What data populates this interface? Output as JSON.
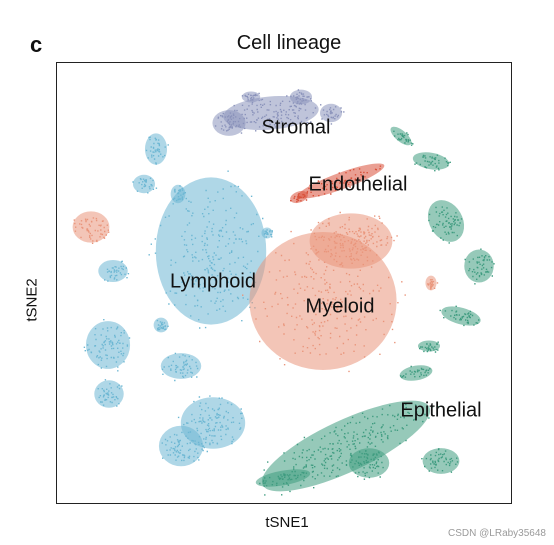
{
  "panel_letter": "c",
  "watermark": "CSDN @LRaby35648",
  "chart_data": {
    "type": "scatter",
    "title": "Cell lineage",
    "xlabel": "tSNE1",
    "ylabel": "tSNE2",
    "grid": false,
    "legend": "none",
    "colors": {
      "Stromal": "#8b93bb",
      "Endothelial": "#d9513a",
      "Lymphoid": "#6db7d3",
      "Myeloid": "#e9957b",
      "Epithelial": "#3f9c80"
    },
    "series": [
      {
        "name": "Stromal",
        "color": "#8b93bb"
      },
      {
        "name": "Endothelial",
        "color": "#d9513a"
      },
      {
        "name": "Lymphoid",
        "color": "#6db7d3"
      },
      {
        "name": "Myeloid",
        "color": "#e9957b"
      },
      {
        "name": "Epithelial",
        "color": "#3f9c80"
      }
    ]
  }
}
